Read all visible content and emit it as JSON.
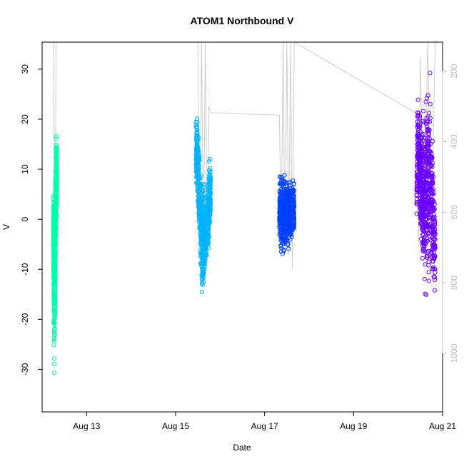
{
  "chart_data": {
    "type": "scatter",
    "title": "ATOM1 Northbound V",
    "xlabel": "Date",
    "ylabel": "V",
    "xlim": [
      "2024-08-12T00:00:00",
      "2024-08-21T00:00:00"
    ],
    "ylim": [
      -38.5,
      35.4
    ],
    "x_ticks": [
      "Aug 13",
      "Aug 15",
      "Aug 17",
      "Aug 19",
      "Aug 21"
    ],
    "y_ticks": [
      -30,
      -20,
      -10,
      0,
      10,
      20,
      30
    ],
    "secondary_y": {
      "ticks": [
        200,
        400,
        600,
        800,
        1000
      ],
      "range": [
        1166,
        118
      ],
      "color": "#bdbdbd"
    },
    "grid": false,
    "series": [
      {
        "color": "#00ffaa",
        "x_range": [
          "2024-08-12T06:00:00",
          "2024-08-12T08:00:00"
        ],
        "envelope": [
          [
            0.0,
            -8,
            8
          ],
          [
            0.1,
            -20,
            8
          ],
          [
            0.2,
            -34,
            6
          ],
          [
            0.3,
            -36,
            8
          ],
          [
            0.4,
            -30,
            10
          ],
          [
            0.5,
            -24,
            5
          ],
          [
            0.6,
            -12,
            12
          ],
          [
            0.7,
            -6,
            16
          ],
          [
            0.8,
            -3,
            19
          ],
          [
            0.9,
            -2,
            19
          ],
          [
            1.0,
            -3,
            18
          ]
        ]
      },
      {
        "color": "#00b3ff",
        "x_range": [
          "2024-08-15T11:00:00",
          "2024-08-15T19:00:00"
        ],
        "envelope": [
          [
            0.0,
            4,
            25
          ],
          [
            0.1,
            2,
            24
          ],
          [
            0.2,
            -5,
            16
          ],
          [
            0.3,
            -12,
            14
          ],
          [
            0.4,
            -22,
            10
          ],
          [
            0.5,
            -18,
            8
          ],
          [
            0.6,
            -14,
            10
          ],
          [
            0.7,
            -10,
            6
          ],
          [
            0.8,
            -8,
            8
          ],
          [
            0.9,
            -6,
            15
          ],
          [
            1.0,
            -5,
            16
          ]
        ]
      },
      {
        "color": "#0040ff",
        "x_range": [
          "2024-08-17T08:00:00",
          "2024-08-17T16:00:00"
        ],
        "envelope": [
          [
            0.0,
            -6,
            10
          ],
          [
            0.15,
            -9,
            11
          ],
          [
            0.3,
            -9,
            10
          ],
          [
            0.45,
            -7,
            10
          ],
          [
            0.6,
            -7,
            9
          ],
          [
            0.75,
            -6,
            9
          ],
          [
            0.9,
            -5,
            9
          ],
          [
            1.0,
            -4,
            8
          ]
        ]
      },
      {
        "color": "#6a00ff",
        "x_range": [
          "2024-08-20T10:00:00",
          "2024-08-20T20:00:00"
        ],
        "envelope": [
          [
            0.0,
            -1,
            8
          ],
          [
            0.05,
            -1,
            30
          ],
          [
            0.15,
            -5,
            28
          ],
          [
            0.25,
            -10,
            22
          ],
          [
            0.35,
            -15,
            26
          ],
          [
            0.45,
            -19,
            24
          ],
          [
            0.55,
            -18,
            30
          ],
          [
            0.65,
            -16,
            33
          ],
          [
            0.75,
            -14,
            32
          ],
          [
            0.85,
            -15,
            20
          ],
          [
            0.95,
            -18,
            10
          ],
          [
            1.0,
            -18,
            5
          ]
        ]
      }
    ],
    "depth_trace": {
      "color": "#cccccc",
      "points": [
        [
          "2024-08-12T06:00:00",
          118
        ],
        [
          "2024-08-12T07:00:00",
          700
        ],
        [
          "2024-08-12T07:30:00",
          118
        ],
        [
          "2024-08-15T12:00:00",
          118
        ],
        [
          "2024-08-15T13:00:00",
          690
        ],
        [
          "2024-08-15T14:00:00",
          118
        ],
        [
          "2024-08-15T15:00:00",
          720
        ],
        [
          "2024-08-15T16:00:00",
          118
        ],
        [
          "2024-08-15T17:00:00",
          740
        ],
        [
          "2024-08-15T18:00:00",
          300
        ],
        [
          "2024-08-15T19:00:00",
          318
        ],
        [
          "2024-08-17T08:00:00",
          325
        ],
        [
          "2024-08-17T09:00:00",
          690
        ],
        [
          "2024-08-17T10:00:00",
          118
        ],
        [
          "2024-08-17T11:00:00",
          710
        ],
        [
          "2024-08-17T12:00:00",
          118
        ],
        [
          "2024-08-17T13:00:00",
          720
        ],
        [
          "2024-08-17T14:00:00",
          118
        ],
        [
          "2024-08-17T15:00:00",
          760
        ],
        [
          "2024-08-17T16:00:00",
          118
        ],
        [
          "2024-08-20T10:00:00",
          320
        ],
        [
          "2024-08-20T11:00:00",
          690
        ],
        [
          "2024-08-20T12:00:00",
          160
        ],
        [
          "2024-08-20T14:00:00",
          700
        ],
        [
          "2024-08-20T16:00:00",
          118
        ],
        [
          "2024-08-20T18:00:00",
          690
        ],
        [
          "2024-08-20T20:00:00",
          118
        ]
      ]
    }
  }
}
